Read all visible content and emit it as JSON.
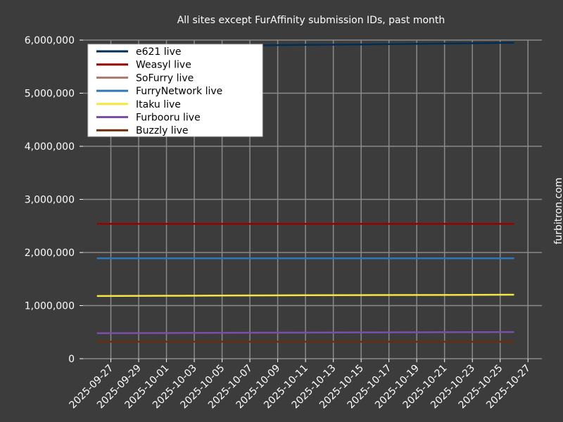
{
  "chart_data": {
    "type": "line",
    "title": "All sites except FurAffinity submission IDs, past month",
    "side_label": "furbitron.com",
    "x": [
      "2025-09-26",
      "2025-10-01",
      "2025-10-06",
      "2025-10-11",
      "2025-10-16",
      "2025-10-21",
      "2025-10-26"
    ],
    "series": [
      {
        "name": "e621 live",
        "color": "#012e56",
        "values": [
          5880000,
          5890000,
          5900000,
          5910000,
          5920000,
          5935000,
          5950000
        ]
      },
      {
        "name": "Weasyl live",
        "color": "#990000",
        "values": [
          2540000,
          2540000,
          2540000,
          2540000,
          2540000,
          2540000,
          2540000
        ]
      },
      {
        "name": "SoFurry live",
        "color": "#a57a6f",
        "values": [
          1890000,
          1890000,
          1890000,
          1890000,
          1890000,
          1890000,
          1890000
        ]
      },
      {
        "name": "FurryNetwork live",
        "color": "#2e77b8",
        "values": [
          1890000,
          1890000,
          1890000,
          1890000,
          1890000,
          1890000,
          1890000
        ]
      },
      {
        "name": "Itaku live",
        "color": "#f5e642",
        "values": [
          1180000,
          1185000,
          1190000,
          1195000,
          1198000,
          1201000,
          1205000
        ]
      },
      {
        "name": "Furbooru live",
        "color": "#7a4fa8",
        "values": [
          480000,
          484000,
          488000,
          492000,
          495000,
          499000,
          502000
        ]
      },
      {
        "name": "Buzzly live",
        "color": "#6b2e0c",
        "values": [
          320000,
          320000,
          320000,
          320000,
          320000,
          320000,
          320000
        ]
      }
    ],
    "xlim": [
      "2025-09-25",
      "2025-10-28"
    ],
    "xticks": [
      "2025-09-27",
      "2025-09-29",
      "2025-10-01",
      "2025-10-03",
      "2025-10-05",
      "2025-10-07",
      "2025-10-09",
      "2025-10-11",
      "2025-10-13",
      "2025-10-15",
      "2025-10-17",
      "2025-10-19",
      "2025-10-21",
      "2025-10-23",
      "2025-10-25",
      "2025-10-27"
    ],
    "ylim": [
      0,
      6000000
    ],
    "yticks": [
      0,
      {
        "value": 1000000,
        "label": "1,000,000"
      },
      {
        "value": 2000000,
        "label": "2,000,000"
      },
      {
        "value": 3000000,
        "label": "3,000,000"
      },
      {
        "value": 4000000,
        "label": "4,000,000"
      },
      {
        "value": 5000000,
        "label": "5,000,000"
      },
      {
        "value": 6000000,
        "label": "6,000,000"
      }
    ],
    "grid": true,
    "legend": "upper left"
  }
}
